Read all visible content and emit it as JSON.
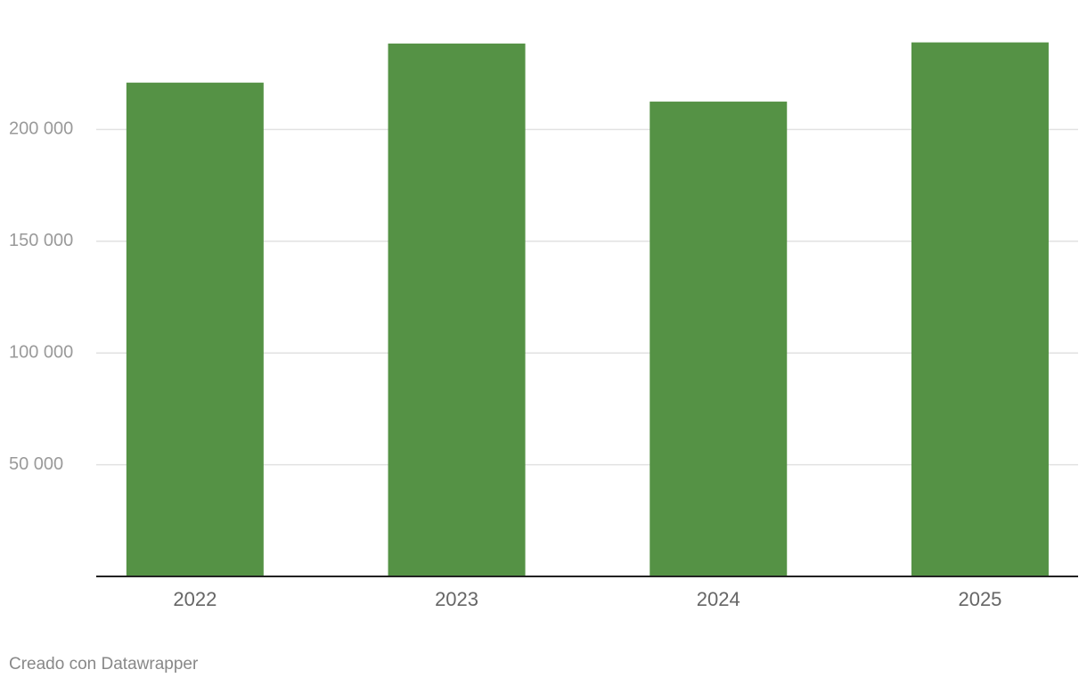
{
  "chart_data": {
    "type": "bar",
    "categories": [
      "2022",
      "2023",
      "2024",
      "2025"
    ],
    "values": [
      221000,
      238500,
      212500,
      239000
    ],
    "color": "#559245",
    "ylim": [
      0,
      250000
    ],
    "yticks": [
      {
        "value": 50000,
        "label": "50 000"
      },
      {
        "value": 100000,
        "label": "100 000"
      },
      {
        "value": 150000,
        "label": "150 000"
      },
      {
        "value": 200000,
        "label": "200 000"
      }
    ],
    "grid": true,
    "footer": "Creado con Datawrapper"
  }
}
